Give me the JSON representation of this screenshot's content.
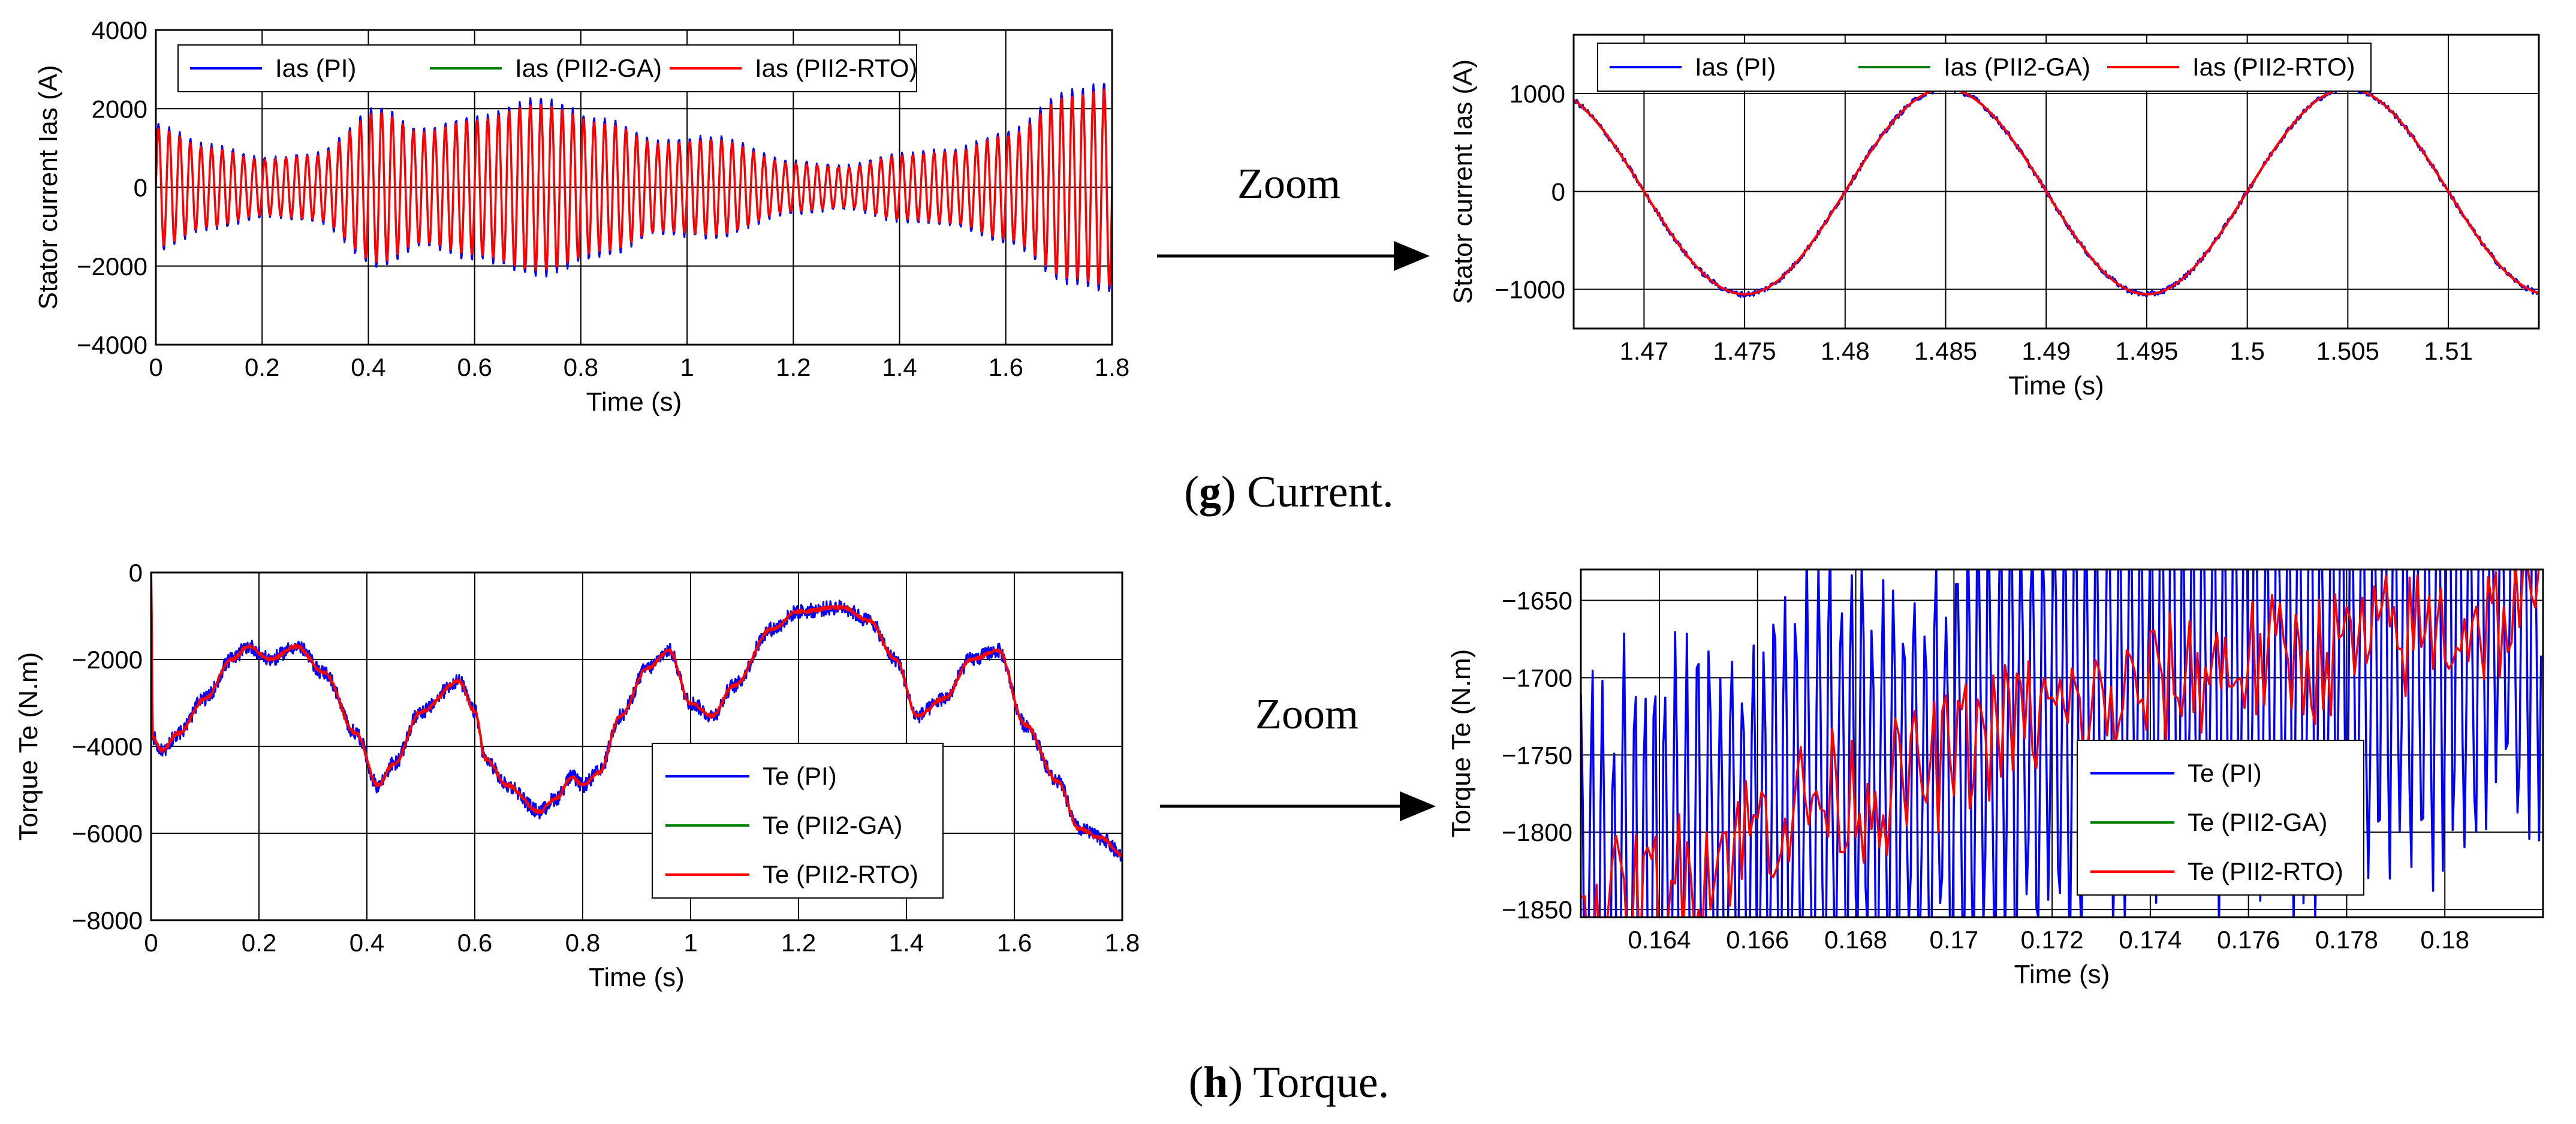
{
  "chart_data": [
    {
      "id": "g-full",
      "type": "line",
      "title": "",
      "xlabel": "Time (s)",
      "ylabel": "Stator current Ias (A)",
      "xlim": [
        0,
        1.8
      ],
      "ylim": [
        -4000,
        4000
      ],
      "xticks": [
        0,
        0.2,
        0.4,
        0.6,
        0.8,
        1,
        1.2,
        1.4,
        1.6,
        1.8
      ],
      "yticks": [
        -4000,
        -2000,
        0,
        2000,
        4000
      ],
      "xtick_labels": [
        "0",
        "0.2",
        "0.4",
        "0.6",
        "0.8",
        "1",
        "1.2",
        "1.4",
        "1.6",
        "1.8"
      ],
      "ytick_labels": [
        "−4000",
        "−2000",
        "0",
        "2000",
        "4000"
      ],
      "grid": true,
      "legend_position": "top-left",
      "signal": {
        "kind": "sinusoid",
        "frequency_hz": 50
      },
      "envelope": {
        "t": [
          0,
          0.1,
          0.2,
          0.3,
          0.42,
          0.5,
          0.6,
          0.72,
          0.85,
          0.95,
          1.05,
          1.2,
          1.3,
          1.4,
          1.5,
          1.6,
          1.72,
          1.8
        ],
        "amp": [
          1500,
          1000,
          700,
          800,
          1900,
          1400,
          1700,
          2100,
          1600,
          1100,
          1200,
          600,
          500,
          800,
          900,
          1300,
          2300,
          2500
        ]
      },
      "series": [
        {
          "name": "Ias (PI)",
          "color": "#0000ff"
        },
        {
          "name": "Ias (PII2-GA)",
          "color": "#008000"
        },
        {
          "name": "Ias (PII2-RTO)",
          "color": "#ff0000"
        }
      ]
    },
    {
      "id": "g-zoom",
      "type": "line",
      "title": "",
      "xlabel": "Time (s)",
      "ylabel": "Stator current Ias (A)",
      "xlim": [
        1.4665,
        1.5145
      ],
      "ylim": [
        -1400,
        1600
      ],
      "xticks": [
        1.47,
        1.475,
        1.48,
        1.485,
        1.49,
        1.495,
        1.5,
        1.505,
        1.51
      ],
      "yticks": [
        -1000,
        0,
        1000
      ],
      "xtick_labels": [
        "1.47",
        "1.475",
        "1.48",
        "1.485",
        "1.49",
        "1.495",
        "1.5",
        "1.505",
        "1.51"
      ],
      "ytick_labels": [
        "−1000",
        "0",
        "1000"
      ],
      "grid": true,
      "legend_position": "top",
      "signal": {
        "kind": "sinusoid",
        "amplitude": 1050,
        "frequency_hz": 50,
        "peak_time": 1.485
      },
      "series": [
        {
          "name": "Ias (PI)",
          "color": "#0000ff"
        },
        {
          "name": "Ias (PII2-GA)",
          "color": "#008000"
        },
        {
          "name": "Ias (PII2-RTO)",
          "color": "#ff0000"
        }
      ]
    },
    {
      "id": "h-full",
      "type": "line",
      "title": "",
      "xlabel": "Time (s)",
      "ylabel": "Torque Te (N.m)",
      "xlim": [
        0,
        1.8
      ],
      "ylim": [
        -8000,
        0
      ],
      "xticks": [
        0,
        0.2,
        0.4,
        0.6,
        0.8,
        1,
        1.2,
        1.4,
        1.6,
        1.8
      ],
      "yticks": [
        -8000,
        -6000,
        -4000,
        -2000,
        0
      ],
      "xtick_labels": [
        "0",
        "0.2",
        "0.4",
        "0.6",
        "0.8",
        "1",
        "1.2",
        "1.4",
        "1.6",
        "1.8"
      ],
      "ytick_labels": [
        "−8000",
        "−6000",
        "−4000",
        "−2000",
        "0"
      ],
      "grid": true,
      "legend_position": "center-right",
      "signal": {
        "t": [
          0,
          0.003,
          0.02,
          0.05,
          0.1,
          0.15,
          0.18,
          0.22,
          0.27,
          0.32,
          0.38,
          0.42,
          0.45,
          0.5,
          0.57,
          0.6,
          0.62,
          0.66,
          0.72,
          0.75,
          0.78,
          0.8,
          0.83,
          0.87,
          0.92,
          0.96,
          1.0,
          1.04,
          1.08,
          1.15,
          1.2,
          1.28,
          1.33,
          1.38,
          1.42,
          1.47,
          1.52,
          1.57,
          1.62,
          1.68,
          1.72,
          1.76,
          1.8
        ],
        "y": [
          0,
          -3800,
          -4100,
          -3700,
          -2900,
          -2000,
          -1700,
          -2000,
          -1700,
          -2300,
          -3700,
          -4900,
          -4400,
          -3200,
          -2500,
          -3200,
          -4300,
          -4900,
          -5500,
          -5200,
          -4700,
          -4900,
          -4600,
          -3300,
          -2200,
          -1800,
          -3000,
          -3300,
          -2600,
          -1300,
          -900,
          -800,
          -1100,
          -2000,
          -3300,
          -2900,
          -2000,
          -1800,
          -3500,
          -4800,
          -5900,
          -6100,
          -6500
        ]
      },
      "series": [
        {
          "name": "Te (PI)",
          "color": "#0000ff"
        },
        {
          "name": "Te (PII2-GA)",
          "color": "#008000"
        },
        {
          "name": "Te (PII2-RTO)",
          "color": "#ff0000"
        }
      ]
    },
    {
      "id": "h-zoom",
      "type": "line",
      "title": "",
      "xlabel": "Time (s)",
      "ylabel": "Torque Te (N.m)",
      "xlim": [
        0.1624,
        0.182
      ],
      "ylim": [
        -1855,
        -1630
      ],
      "xticks": [
        0.164,
        0.166,
        0.168,
        0.17,
        0.172,
        0.174,
        0.176,
        0.178,
        0.18
      ],
      "yticks": [
        -1850,
        -1800,
        -1750,
        -1700,
        -1650
      ],
      "xtick_labels": [
        "0.164",
        "0.166",
        "0.168",
        "0.17",
        "0.172",
        "0.174",
        "0.176",
        "0.178",
        "0.18"
      ],
      "ytick_labels": [
        "−1850",
        "−1800",
        "−1750",
        "−1700",
        "−1650"
      ],
      "grid": true,
      "legend_position": "bottom-right",
      "signal": {
        "trend_t": [
          0.1624,
          0.168,
          0.172,
          0.176,
          0.182
        ],
        "trend_y": [
          -1850,
          -1775,
          -1725,
          -1690,
          -1660
        ],
        "pi_spread": 150,
        "rto_spread": 45
      },
      "series": [
        {
          "name": "Te (PI)",
          "color": "#0000ff"
        },
        {
          "name": "Te (PII2-GA)",
          "color": "#008000"
        },
        {
          "name": "Te (PII2-RTO)",
          "color": "#ff0000"
        }
      ]
    }
  ],
  "zoom_labels": [
    "Zoom",
    "Zoom"
  ],
  "captions": {
    "g": {
      "letter": "g",
      "text": " Current."
    },
    "h": {
      "letter": "h",
      "text": " Torque."
    }
  }
}
